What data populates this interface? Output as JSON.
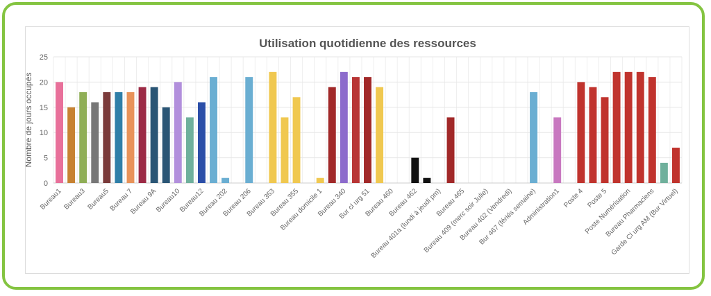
{
  "chart_data": {
    "type": "bar",
    "title": "Utilisation quotidienne des ressources",
    "ylabel": "Nombre de jours occupés",
    "xlabel": "",
    "ylim": [
      0,
      25
    ],
    "yticks": [
      0,
      5,
      10,
      15,
      20,
      25
    ],
    "grid": true,
    "categories": [
      "Bureau1",
      "Bureau2",
      "Bureau3",
      "Bureau4",
      "Bureau5",
      "Bureau6",
      "Bureau 7",
      "Bureau 8",
      "Bureau 9A",
      "Bureau 9B",
      "Bureau10",
      "Bureau11",
      "Bureau12",
      "Bureau13",
      "Bureau 202",
      "Bureau 204",
      "Bureau 206",
      "Bureau 208",
      "Bureau 353",
      "Bureau 354",
      "Bureau 355",
      "Bureau domicile",
      "Bureau domicile 1",
      "Bureau 339",
      "Bureau 340",
      "Bureau 341",
      "Bur cl urg 51",
      "Bureau 459",
      "Bureau 460",
      "Bureau 461",
      "Bureau  462",
      "Bureau 401",
      "Bureau  401a (lundi à jeudi pm)",
      "Bureau 463",
      "Bureau  465",
      "Bureau 408",
      "Bureau 409 (merc soir Julie)",
      "Bureau 410",
      "Bureau  402 (Vendredi)",
      "Bur 466",
      "Bur 467 (fériés semaine)",
      "Administration",
      "Administration1",
      "Poste 3",
      "Poste 4",
      "Poste 4a",
      "Poste 5",
      "Poste 6",
      "Poste Numérisation",
      "Bureau Pharm",
      "Bureau Pharmaciens",
      "Garde Cl urg AM",
      "Garde Cl urg AM (Bur Virtuel)"
    ],
    "values": [
      20,
      15,
      18,
      16,
      18,
      18,
      18,
      19,
      19,
      15,
      20,
      13,
      16,
      21,
      1,
      0,
      21,
      0,
      22,
      13,
      17,
      0,
      1,
      19,
      22,
      21,
      21,
      19,
      0,
      0,
      5,
      1,
      0,
      13,
      0,
      0,
      0,
      0,
      0,
      0,
      18,
      0,
      13,
      0,
      20,
      19,
      17,
      22,
      22,
      22,
      21,
      4,
      7
    ],
    "colors": [
      "#e8709a",
      "#c78232",
      "#8fae56",
      "#777777",
      "#7a3a3a",
      "#2f7fa8",
      "#e8935a",
      "#9c2a45",
      "#2a5575",
      "#2a5575",
      "#b28fdc",
      "#6fb09c",
      "#2b4ea8",
      "#6aaed2",
      "#6aaed2",
      "#6aaed2",
      "#6aaed2",
      "#6aaed2",
      "#f0c850",
      "#f0c850",
      "#f0c850",
      "#f0c850",
      "#f0c850",
      "#a12828",
      "#8c6bcc",
      "#b83535",
      "#a12828",
      "#f0c850",
      "#f0c850",
      "#111111",
      "#111111",
      "#111111",
      "#a12828",
      "#a12828",
      "#a12828",
      "#6aaed2",
      "#6aaed2",
      "#6aaed2",
      "#6aaed2",
      "#6aaed2",
      "#6aaed2",
      "#c878c0",
      "#c878c0",
      "#c0332d",
      "#c0332d",
      "#c0332d",
      "#c0332d",
      "#c0332d",
      "#c0332d",
      "#c0332d",
      "#c0332d",
      "#6fb09c",
      "#c0332d"
    ],
    "x_label_shown": [
      true,
      false,
      true,
      false,
      true,
      false,
      true,
      false,
      true,
      false,
      true,
      false,
      true,
      false,
      true,
      false,
      true,
      false,
      true,
      false,
      true,
      false,
      true,
      false,
      true,
      false,
      true,
      false,
      true,
      false,
      true,
      false,
      true,
      false,
      true,
      false,
      true,
      false,
      true,
      false,
      true,
      false,
      true,
      false,
      true,
      false,
      true,
      false,
      true,
      false,
      true,
      false,
      true
    ]
  }
}
